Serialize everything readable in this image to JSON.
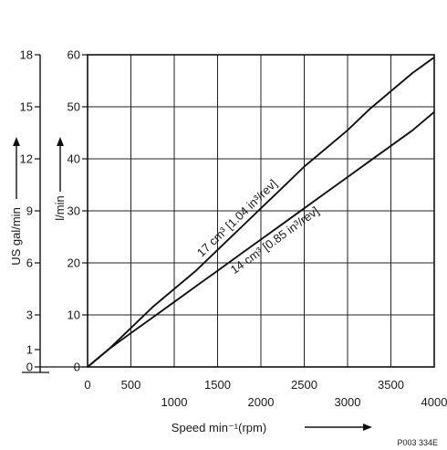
{
  "chart_data": {
    "type": "line",
    "x_axis": {
      "label": "Speed min⁻¹(rpm)",
      "ticks_row1": [
        "0",
        "500",
        "1500",
        "2500",
        "3500"
      ],
      "ticks_row2": [
        "1000",
        "2000",
        "3000",
        "4000"
      ],
      "range": [
        0,
        4000
      ]
    },
    "y_axis_left": {
      "label": "l/min",
      "ticks": [
        "0",
        "10",
        "20",
        "30",
        "40",
        "50",
        "60"
      ],
      "range": [
        0,
        60
      ]
    },
    "y_axis_outer": {
      "label": "US gal/min",
      "ticks": [
        "0",
        "1",
        "3",
        "6",
        "9",
        "12",
        "15",
        "18"
      ],
      "range": [
        0,
        18
      ]
    },
    "grid": true,
    "series": [
      {
        "name": "17 cm³ [1.04 in³/rev]",
        "x": [
          0,
          250,
          500,
          750,
          1000,
          1250,
          1500,
          1750,
          2000,
          2250,
          2500,
          2750,
          3000,
          3250,
          3500,
          3750,
          4000
        ],
        "y": [
          0,
          3.5,
          7.5,
          11.5,
          15,
          18.5,
          22.5,
          26.5,
          30.5,
          34.5,
          38.5,
          42,
          45.5,
          49.5,
          53,
          56.5,
          59.5
        ]
      },
      {
        "name": "14 cm³ [0.85 in³/rev]",
        "x": [
          0,
          250,
          500,
          750,
          1000,
          1250,
          1500,
          1750,
          2000,
          2250,
          2500,
          2750,
          3000,
          3250,
          3500,
          3750,
          4000
        ],
        "y": [
          0,
          3.5,
          6.5,
          9.5,
          12.5,
          15.5,
          18.5,
          21.5,
          24.5,
          27.5,
          30.5,
          33.5,
          36.5,
          39.5,
          42.5,
          45.5,
          49
        ]
      }
    ],
    "figure_code": "P003 334E"
  }
}
